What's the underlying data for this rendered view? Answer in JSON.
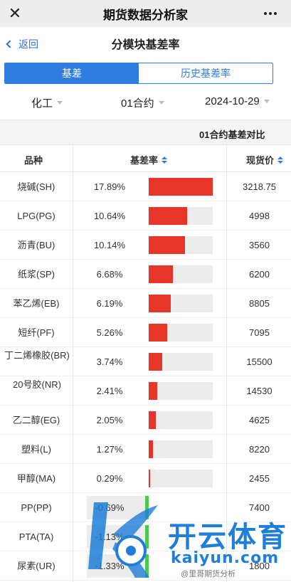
{
  "appbar": {
    "title": "期货数据分析家",
    "close_icon": "close-icon",
    "more_icon": "more-icon"
  },
  "subhead": {
    "back_label": "返回",
    "title": "分模块基差率"
  },
  "tabs": [
    {
      "label": "基差",
      "active": true
    },
    {
      "label": "历史基差率",
      "active": false
    }
  ],
  "filters": {
    "category": "化工",
    "contract": "01合约",
    "date": "2024-10-29"
  },
  "compare_label": "01合约基差对比",
  "table": {
    "headers": {
      "variety": "品种",
      "basis_rate": "基差率",
      "spot_price": "现货价"
    },
    "rows": [
      {
        "name": "烧碱(SH)",
        "rate": "17.89%",
        "value": 17.89,
        "spot": "3218.75"
      },
      {
        "name": "LPG(PG)",
        "rate": "10.64%",
        "value": 10.64,
        "spot": "4998"
      },
      {
        "name": "沥青(BU)",
        "rate": "10.14%",
        "value": 10.14,
        "spot": "3560"
      },
      {
        "name": "纸浆(SP)",
        "rate": "6.68%",
        "value": 6.68,
        "spot": "6200"
      },
      {
        "name": "苯乙烯(EB)",
        "rate": "6.19%",
        "value": 6.19,
        "spot": "8805"
      },
      {
        "name": "短纤(PF)",
        "rate": "5.26%",
        "value": 5.26,
        "spot": "7095"
      },
      {
        "name": "丁二烯橡胶(BR)",
        "rate": "3.74%",
        "value": 3.74,
        "spot": "15500"
      },
      {
        "name": "20号胶(NR)",
        "rate": "2.41%",
        "value": 2.41,
        "spot": "14530"
      },
      {
        "name": "乙二醇(EG)",
        "rate": "2.05%",
        "value": 2.05,
        "spot": "4625"
      },
      {
        "name": "塑料(L)",
        "rate": "1.27%",
        "value": 1.27,
        "spot": "8220"
      },
      {
        "name": "甲醇(MA)",
        "rate": "0.29%",
        "value": 0.29,
        "spot": "2455"
      },
      {
        "name": "PP(PP)",
        "rate": "-0.69%",
        "value": -0.69,
        "spot": "7400"
      },
      {
        "name": "PTA(TA)",
        "rate": "-1.13%",
        "value": -1.13,
        "spot": ""
      },
      {
        "name": "尿素(UR)",
        "rate": "-1.33%",
        "value": -1.33,
        "spot": "1800"
      }
    ]
  },
  "colors": {
    "accent": "#2f7de0",
    "positive_bar": "#e8352a",
    "negative_marker": "#4cc84a",
    "bar_bg": "#ececec"
  },
  "watermark": {
    "brand": "开云体育",
    "domain": "kaiyun.com",
    "footer": "@里哥期货分析"
  }
}
